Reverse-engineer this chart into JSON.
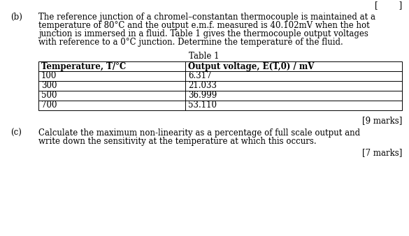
{
  "background_color": "#ffffff",
  "part_b_label": "(b)",
  "part_b_text_line1": "The reference junction of a chromel–constantan thermocouple is maintained at a",
  "part_b_text_line2": "temperature of 80°C and the output e.m.f. measured is 40.102mV when the hot",
  "part_b_text_line3": "junction is immersed in a fluid. Table 1 gives the thermocouple output voltages",
  "part_b_text_line4": "with reference to a 0°C junction. Determine the temperature of the fluid.",
  "table_title": "Table 1",
  "table_col1_header": "Temperature, T/°C",
  "table_col2_header": "Output voltage, E(T,0) / mV",
  "table_data": [
    [
      "100",
      "6.317"
    ],
    [
      "300",
      "21.033"
    ],
    [
      "500",
      "36.999"
    ],
    [
      "700",
      "53.110"
    ]
  ],
  "marks_b": "[9 marks]",
  "part_c_label": "(c)",
  "part_c_text_line1": "Calculate the maximum non-linearity as a percentage of full scale output and",
  "part_c_text_line2": "write down the sensitivity at the temperature at which this occurs.",
  "marks_c": "[7 marks]",
  "top_right_text": "[        ]",
  "font_size_body": 8.5,
  "text_color": "#000000",
  "table_border_color": "#000000"
}
